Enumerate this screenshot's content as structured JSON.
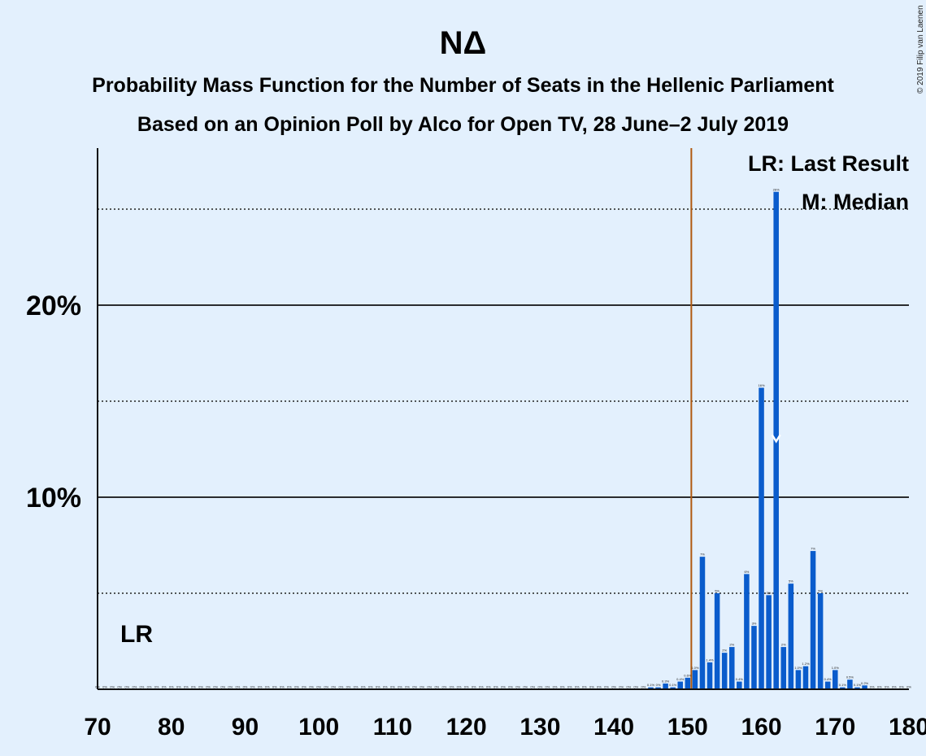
{
  "chart_data": {
    "type": "bar",
    "title": "ΝΔ",
    "subtitle": "Probability Mass Function for the Number of Seats in the Hellenic Parliament",
    "subtitle2": "Based on an Opinion Poll by Alco for Open TV, 28 June–2 July 2019",
    "copyright": "© 2019 Filip van Laenen",
    "xlabel": "",
    "ylabel": "",
    "xlim": [
      70,
      180
    ],
    "ylim": [
      0,
      28
    ],
    "x_ticks": [
      "70",
      "80",
      "90",
      "100",
      "110",
      "120",
      "130",
      "140",
      "150",
      "160",
      "170",
      "180"
    ],
    "y_ticks": [
      {
        "value": 10,
        "label": "10%"
      },
      {
        "value": 20,
        "label": "20%"
      }
    ],
    "dotted_gridlines": [
      5,
      15,
      25
    ],
    "solid_gridlines": [
      10,
      20
    ],
    "legend": {
      "last_result": "LR: Last Result",
      "median": "M: Median",
      "placement": "top-right"
    },
    "last_result": {
      "seat": 150.5,
      "label": "LR"
    },
    "median": {
      "seat": 162,
      "label": "M"
    },
    "bar_color": "#0a5ccc",
    "last_result_color": "#b05a10",
    "series": [
      {
        "x": [
          145,
          146,
          147,
          148,
          149,
          150,
          151,
          152,
          153,
          154,
          155,
          156,
          157,
          158,
          159,
          160,
          161,
          162,
          163,
          164,
          165,
          166,
          167,
          168,
          169,
          170,
          171,
          172,
          173,
          174,
          175
        ],
        "values": [
          0.1,
          0.1,
          0.3,
          0.1,
          0.4,
          0.6,
          1.0,
          6.9,
          1.4,
          5.0,
          1.9,
          2.2,
          0.4,
          6.0,
          3.3,
          15.7,
          4.9,
          25.9,
          2.2,
          5.5,
          1.0,
          1.2,
          7.2,
          5.0,
          0.4,
          1.0,
          0.1,
          0.5,
          0.1,
          0.2,
          0.0
        ],
        "labels": [
          "0.1%",
          "0%",
          "0.3%",
          "0.1%",
          "0.4%",
          "0.6%",
          "1.0%",
          "7%",
          "1.4%",
          "5%",
          "2%",
          "2%",
          "0.4%",
          "6%",
          "3%",
          "16%",
          "5%",
          "26%",
          "2%",
          "5%",
          "1.0%",
          "1.2%",
          "7%",
          "5%",
          "0.4%",
          "1.0%",
          "0.1%",
          "0.5%",
          "0.1%",
          "0.2%",
          "0%"
        ]
      }
    ],
    "zero_label": "0%"
  }
}
